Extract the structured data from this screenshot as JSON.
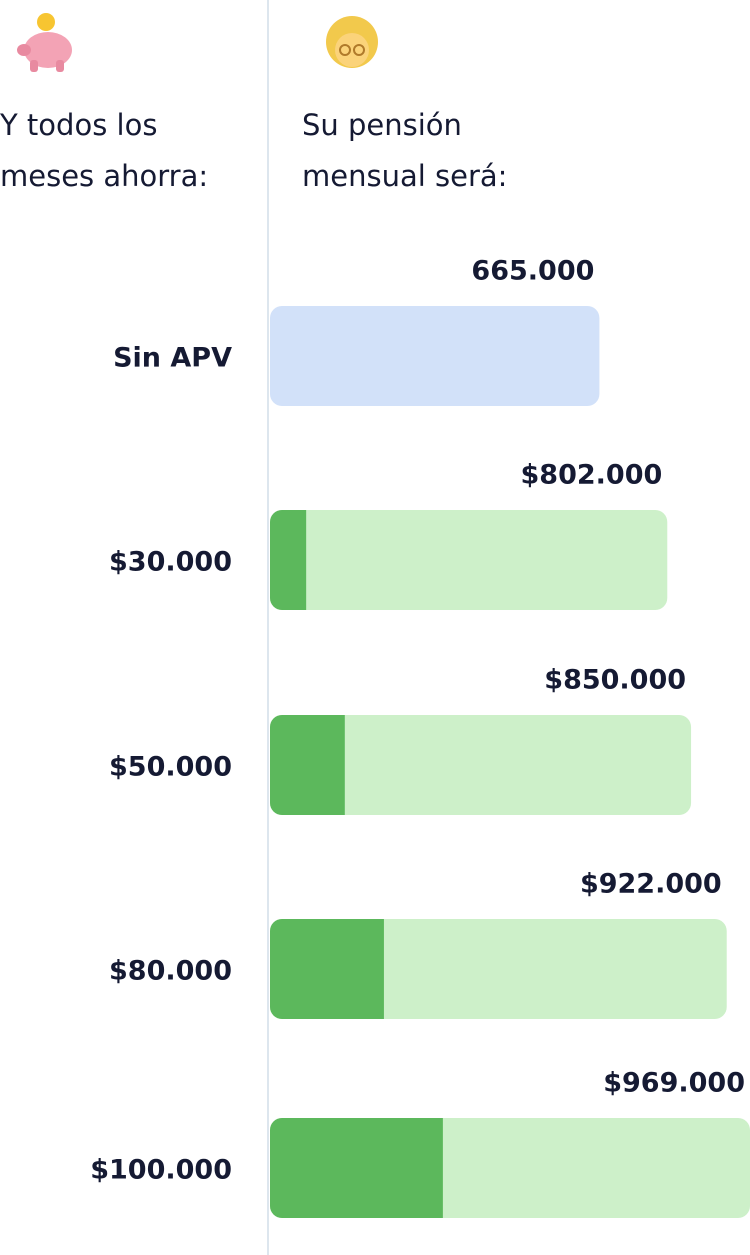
{
  "chart_data": {
    "type": "bar",
    "column_titles": [
      [
        "Y todos los",
        "meses ahorra:"
      ],
      [
        "Su pensión",
        "mensual será:"
      ]
    ],
    "categories": [
      "Sin APV",
      "$30.000",
      "$50.000",
      "$80.000",
      "$100.000"
    ],
    "values": [
      665000,
      802000,
      850000,
      922000,
      969000
    ],
    "value_labels": [
      "665.000",
      "$802.000",
      "$850.000",
      "$922.000",
      "$969.000"
    ],
    "colors": [
      "#d2e1f9",
      "#cdf0c9",
      "#cdf0c9",
      "#cdf0c9",
      "#cdf0c9"
    ],
    "apv_values": [
      null,
      73000,
      151000,
      230000,
      349000
    ],
    "apv_color": "#5cb85c",
    "xlim": [
      0,
      969000
    ]
  }
}
